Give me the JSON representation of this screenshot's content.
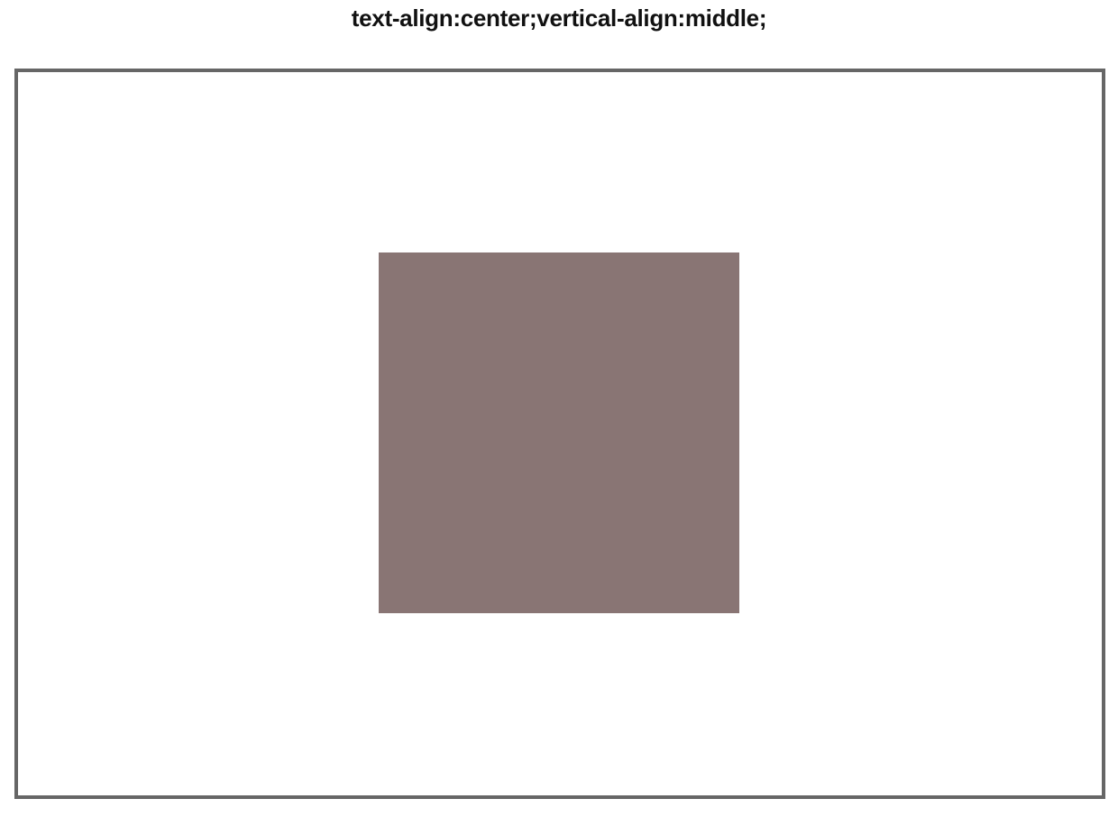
{
  "header": {
    "title": "text-align:center;vertical-align:middle;"
  },
  "demo": {
    "frame_border_color": "#666666",
    "box_color": "#897574"
  }
}
